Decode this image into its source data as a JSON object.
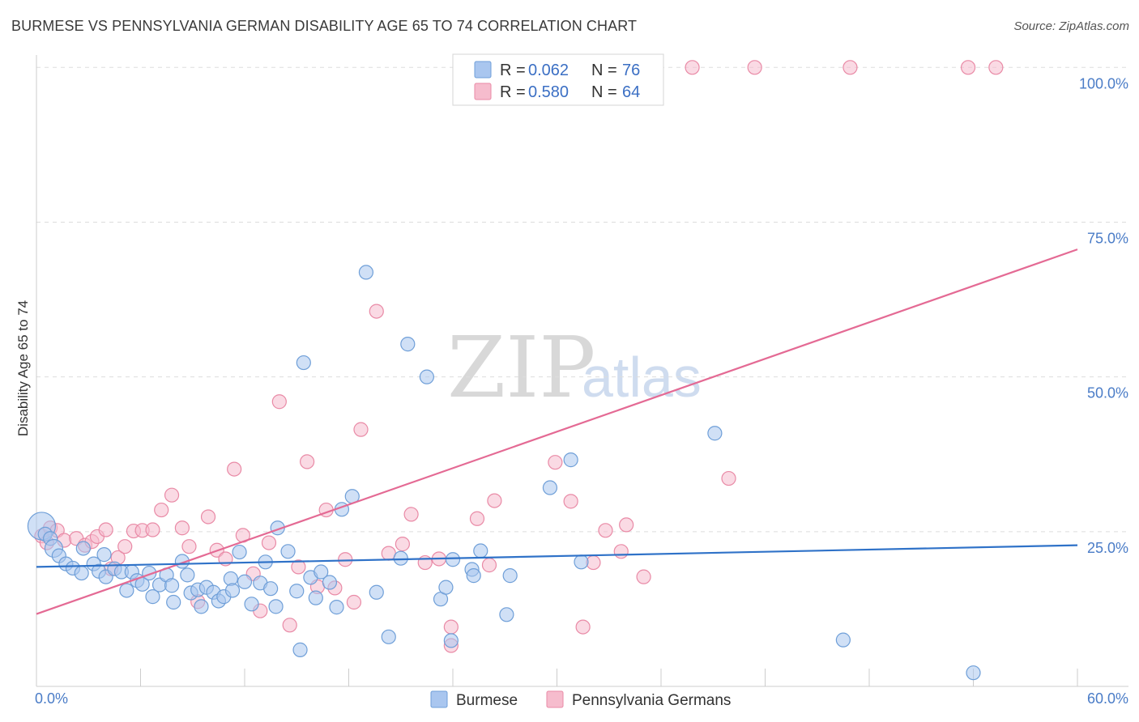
{
  "title": "BURMESE VS PENNSYLVANIA GERMAN DISABILITY AGE 65 TO 74 CORRELATION CHART",
  "source": "Source: ZipAtlas.com",
  "watermark": {
    "zip": "ZIP",
    "atlas": "atlas"
  },
  "colors": {
    "burmese_fill": "#a9c6ef",
    "burmese_stroke": "#6f9fd8",
    "burmese_line": "#2f72c8",
    "pg_fill": "#f6bccd",
    "pg_stroke": "#e98aa6",
    "pg_line": "#e46a94",
    "grid": "#dddddd",
    "tick_text": "#4a7cc7"
  },
  "legend": {
    "rows": [
      {
        "r_label": "R = ",
        "r_value": "0.062",
        "n_label": "N = ",
        "n_value": "76"
      },
      {
        "r_label": "R = ",
        "r_value": "0.580",
        "n_label": "N = ",
        "n_value": "64"
      }
    ]
  },
  "bottom_legend": [
    "Burmese",
    "Pennsylvania Germans"
  ],
  "chart_data": {
    "type": "scatter",
    "title": "BURMESE VS PENNSYLVANIA GERMAN DISABILITY AGE 65 TO 74 CORRELATION CHART",
    "xlabel": "",
    "ylabel": "Disability Age 65 to 74",
    "xlim": [
      0,
      60
    ],
    "ylim": [
      0,
      102
    ],
    "x_tick_labels": [
      "0.0%",
      "60.0%"
    ],
    "y_ticks": [
      25,
      50,
      75,
      100
    ],
    "y_tick_labels": [
      "25.0%",
      "50.0%",
      "75.0%",
      "100.0%"
    ],
    "grid": true,
    "legend_position": "top-center",
    "series": [
      {
        "name": "Burmese",
        "r": 0.062,
        "n": 76,
        "trend": [
          [
            0,
            19.3
          ],
          [
            60,
            22.8
          ]
        ],
        "points": [
          [
            0.3,
            25.9
          ],
          [
            0.5,
            24.6
          ],
          [
            0.8,
            23.9
          ],
          [
            1.0,
            22.3
          ],
          [
            1.3,
            21.1
          ],
          [
            1.7,
            19.8
          ],
          [
            2.1,
            19.1
          ],
          [
            2.6,
            18.3
          ],
          [
            2.7,
            22.3
          ],
          [
            3.3,
            19.8
          ],
          [
            3.6,
            18.6
          ],
          [
            3.9,
            21.3
          ],
          [
            4.0,
            17.7
          ],
          [
            4.5,
            19.0
          ],
          [
            4.9,
            18.5
          ],
          [
            5.2,
            15.5
          ],
          [
            5.5,
            18.5
          ],
          [
            5.8,
            17.1
          ],
          [
            6.1,
            16.5
          ],
          [
            6.5,
            18.3
          ],
          [
            6.7,
            14.5
          ],
          [
            7.1,
            16.4
          ],
          [
            7.5,
            18.0
          ],
          [
            7.8,
            16.3
          ],
          [
            7.9,
            13.6
          ],
          [
            8.4,
            20.2
          ],
          [
            8.7,
            18.0
          ],
          [
            8.9,
            15.1
          ],
          [
            9.3,
            15.6
          ],
          [
            9.5,
            12.9
          ],
          [
            9.8,
            16.0
          ],
          [
            10.2,
            15.2
          ],
          [
            10.5,
            13.8
          ],
          [
            10.8,
            14.5
          ],
          [
            11.2,
            17.4
          ],
          [
            11.3,
            15.5
          ],
          [
            11.7,
            21.7
          ],
          [
            12.0,
            16.9
          ],
          [
            12.4,
            13.3
          ],
          [
            12.9,
            16.7
          ],
          [
            13.2,
            20.1
          ],
          [
            13.5,
            15.8
          ],
          [
            13.8,
            12.9
          ],
          [
            13.9,
            25.6
          ],
          [
            14.5,
            21.8
          ],
          [
            15.0,
            15.4
          ],
          [
            15.4,
            52.3
          ],
          [
            15.2,
            5.9
          ],
          [
            15.8,
            17.6
          ],
          [
            16.1,
            14.3
          ],
          [
            16.4,
            18.5
          ],
          [
            16.9,
            16.8
          ],
          [
            17.3,
            12.8
          ],
          [
            17.6,
            28.6
          ],
          [
            18.2,
            30.7
          ],
          [
            19.0,
            66.9
          ],
          [
            19.6,
            15.2
          ],
          [
            20.3,
            8.0
          ],
          [
            21.0,
            20.7
          ],
          [
            21.4,
            55.3
          ],
          [
            22.5,
            50.0
          ],
          [
            23.3,
            14.1
          ],
          [
            23.6,
            16.0
          ],
          [
            23.9,
            7.4
          ],
          [
            24.0,
            20.5
          ],
          [
            25.1,
            18.9
          ],
          [
            25.2,
            17.9
          ],
          [
            25.6,
            21.9
          ],
          [
            27.1,
            11.6
          ],
          [
            27.3,
            17.9
          ],
          [
            29.6,
            32.1
          ],
          [
            30.8,
            36.6
          ],
          [
            31.4,
            20.1
          ],
          [
            39.1,
            40.9
          ],
          [
            46.5,
            7.5
          ],
          [
            54.0,
            2.2
          ]
        ]
      },
      {
        "name": "Pennsylvania Germans",
        "r": 0.58,
        "n": 64,
        "trend": [
          [
            0,
            11.7
          ],
          [
            60,
            70.6
          ]
        ],
        "points": [
          [
            0.3,
            24.3
          ],
          [
            0.6,
            23.2
          ],
          [
            0.8,
            25.6
          ],
          [
            1.2,
            25.2
          ],
          [
            1.6,
            23.6
          ],
          [
            2.3,
            23.9
          ],
          [
            2.8,
            22.8
          ],
          [
            3.2,
            23.4
          ],
          [
            3.5,
            24.2
          ],
          [
            4.0,
            25.3
          ],
          [
            4.3,
            19.0
          ],
          [
            4.7,
            20.8
          ],
          [
            5.1,
            22.6
          ],
          [
            5.6,
            25.1
          ],
          [
            6.1,
            25.2
          ],
          [
            6.7,
            25.3
          ],
          [
            7.2,
            28.5
          ],
          [
            7.8,
            30.9
          ],
          [
            8.4,
            25.6
          ],
          [
            8.8,
            22.6
          ],
          [
            9.3,
            13.7
          ],
          [
            9.9,
            27.4
          ],
          [
            10.4,
            22.0
          ],
          [
            10.9,
            20.6
          ],
          [
            11.4,
            35.1
          ],
          [
            11.9,
            24.4
          ],
          [
            12.5,
            18.2
          ],
          [
            12.9,
            12.2
          ],
          [
            13.4,
            23.2
          ],
          [
            14.0,
            46.0
          ],
          [
            14.6,
            9.9
          ],
          [
            15.1,
            19.3
          ],
          [
            15.6,
            36.3
          ],
          [
            16.2,
            16.1
          ],
          [
            16.7,
            28.5
          ],
          [
            17.2,
            15.9
          ],
          [
            17.8,
            20.5
          ],
          [
            18.3,
            13.6
          ],
          [
            18.7,
            41.5
          ],
          [
            19.6,
            60.6
          ],
          [
            20.3,
            21.5
          ],
          [
            21.1,
            23.0
          ],
          [
            21.6,
            27.8
          ],
          [
            22.4,
            20.0
          ],
          [
            23.2,
            20.6
          ],
          [
            23.9,
            9.6
          ],
          [
            23.9,
            6.6
          ],
          [
            25.4,
            27.1
          ],
          [
            26.1,
            19.6
          ],
          [
            26.4,
            30.0
          ],
          [
            29.9,
            36.2
          ],
          [
            30.8,
            29.9
          ],
          [
            31.5,
            9.6
          ],
          [
            32.1,
            20.0
          ],
          [
            32.8,
            25.2
          ],
          [
            33.7,
            21.8
          ],
          [
            34.0,
            26.1
          ],
          [
            35.0,
            17.7
          ],
          [
            37.8,
            100.0
          ],
          [
            39.9,
            33.6
          ],
          [
            41.4,
            100.0
          ],
          [
            46.9,
            100.0
          ],
          [
            53.7,
            100.0
          ],
          [
            55.3,
            100.0
          ]
        ]
      }
    ]
  }
}
